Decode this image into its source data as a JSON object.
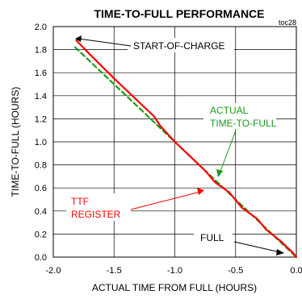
{
  "chart_data": {
    "type": "line",
    "title": "TIME-TO-FULL PERFORMANCE",
    "figure_tag": "toc28",
    "xlabel": "ACTUAL TIME FROM FULL (HOURS)",
    "ylabel": "TIME-TO-FULL (HOURS)",
    "xlim": [
      -2.0,
      0.0
    ],
    "ylim": [
      0.0,
      2.0
    ],
    "xticks": [
      -2.0,
      -1.5,
      -1.0,
      -0.5,
      0.0
    ],
    "xtick_labels": [
      "-2.0",
      "-1.5",
      "-1.0",
      "-0.5",
      "0.0"
    ],
    "yticks": [
      0.0,
      0.2,
      0.4,
      0.6,
      0.8,
      1.0,
      1.2,
      1.4,
      1.6,
      1.8,
      2.0
    ],
    "ytick_labels": [
      "0.0",
      "0.2",
      "0.4",
      "0.6",
      "0.8",
      "1.0",
      "1.2",
      "1.4",
      "1.6",
      "1.8",
      "2.0"
    ],
    "grid": true,
    "series": [
      {
        "name": "TTF REGISTER",
        "color": "#ff0000",
        "style": "solid",
        "x": [
          -1.81,
          -1.7,
          -1.5,
          -1.3,
          -1.17,
          -1.12,
          -1.0,
          -0.9,
          -0.75,
          -0.67,
          -0.55,
          -0.45,
          -0.32,
          -0.25,
          -0.12,
          -0.03,
          0.0
        ],
        "y": [
          1.88,
          1.76,
          1.55,
          1.35,
          1.22,
          1.14,
          1.0,
          0.9,
          0.75,
          0.65,
          0.56,
          0.43,
          0.33,
          0.24,
          0.13,
          0.04,
          0.0
        ]
      },
      {
        "name": "ACTUAL TIME-TO-FULL",
        "color": "#1a9a1a",
        "style": "dashed",
        "x": [
          -1.82,
          0.0
        ],
        "y": [
          1.82,
          0.0
        ]
      }
    ],
    "annotations": [
      {
        "text": "START-OF-CHARGE",
        "color": "#000000"
      },
      {
        "line1": "ACTUAL",
        "line2": "TIME-TO-FULL",
        "color": "#1a9a1a"
      },
      {
        "line1": "TTF",
        "line2": "REGISTER",
        "color": "#ff0000"
      },
      {
        "text": "FULL",
        "color": "#000000"
      }
    ]
  }
}
